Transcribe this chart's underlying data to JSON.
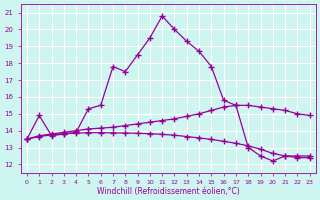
{
  "xlabel": "Windchill (Refroidissement éolien,°C)",
  "bg_color": "#cef5f0",
  "grid_color": "#ffffff",
  "line_color": "#990099",
  "xlim": [
    -0.5,
    23.5
  ],
  "ylim": [
    11.5,
    21.5
  ],
  "xticks": [
    0,
    1,
    2,
    3,
    4,
    5,
    6,
    7,
    8,
    9,
    10,
    11,
    12,
    13,
    14,
    15,
    16,
    17,
    18,
    19,
    20,
    21,
    22,
    23
  ],
  "yticks": [
    12,
    13,
    14,
    15,
    16,
    17,
    18,
    19,
    20,
    21
  ],
  "x_values": [
    0,
    1,
    2,
    3,
    4,
    5,
    6,
    7,
    8,
    9,
    10,
    11,
    12,
    13,
    14,
    15,
    16,
    17,
    18,
    19,
    20,
    21,
    22,
    23
  ],
  "series1": [
    13.5,
    14.9,
    13.7,
    13.8,
    13.9,
    15.3,
    15.5,
    17.8,
    17.5,
    18.5,
    19.5,
    20.8,
    20.0,
    19.3,
    18.7,
    17.8,
    15.8,
    15.5,
    13.0,
    12.5,
    12.2,
    12.5,
    12.5,
    12.5
  ],
  "series2": [
    13.5,
    13.7,
    13.8,
    13.9,
    14.0,
    14.1,
    14.15,
    14.2,
    14.3,
    14.4,
    14.5,
    14.6,
    14.7,
    14.85,
    15.0,
    15.2,
    15.4,
    15.5,
    15.5,
    15.4,
    15.3,
    15.2,
    15.0,
    14.9
  ],
  "series3": [
    13.5,
    13.65,
    13.75,
    13.82,
    13.85,
    13.88,
    13.88,
    13.87,
    13.86,
    13.84,
    13.82,
    13.78,
    13.73,
    13.65,
    13.57,
    13.48,
    13.37,
    13.25,
    13.1,
    12.9,
    12.65,
    12.5,
    12.4,
    12.4
  ]
}
